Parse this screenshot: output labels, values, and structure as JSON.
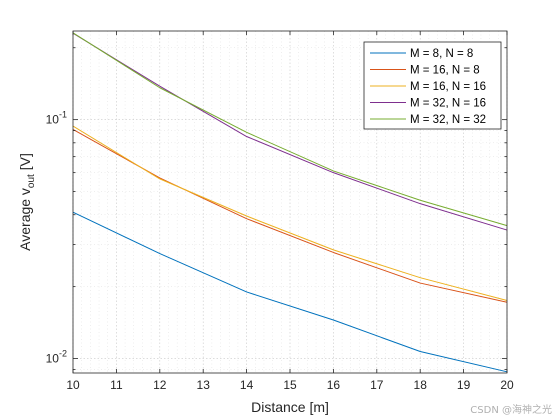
{
  "chart_data": {
    "type": "line",
    "xlabel": "Distance [m]",
    "ylabel_base": "Average v",
    "ylabel_sub": "out",
    "ylabel_unit": " [V]",
    "xlim": [
      10,
      20
    ],
    "ylim": [
      0.0087,
      0.235
    ],
    "yscale": "log",
    "grid": "major and minor",
    "legend_position": "top-right",
    "x": [
      10,
      12,
      14,
      16,
      18,
      20
    ],
    "x_ticks": [
      10,
      11,
      12,
      13,
      14,
      15,
      16,
      17,
      18,
      19,
      20
    ],
    "y_ticks": [
      {
        "value": 0.01,
        "label_base": "10",
        "label_exp": "-2"
      },
      {
        "value": 0.1,
        "label_base": "10",
        "label_exp": "-1"
      }
    ],
    "series": [
      {
        "name": "M = 8, N = 8",
        "color": "#0072BD",
        "values": [
          0.041,
          0.0275,
          0.019,
          0.0145,
          0.0107,
          0.0088
        ]
      },
      {
        "name": "M = 16, N = 8",
        "color": "#D95319",
        "values": [
          0.091,
          0.057,
          0.0385,
          0.0278,
          0.0207,
          0.0172
        ]
      },
      {
        "name": "M = 16, N = 16",
        "color": "#EDB120",
        "values": [
          0.094,
          0.0565,
          0.0395,
          0.0285,
          0.0218,
          0.0175
        ]
      },
      {
        "name": "M = 32, N = 16",
        "color": "#7E2F8E",
        "values": [
          0.23,
          0.138,
          0.085,
          0.06,
          0.0445,
          0.0345
        ]
      },
      {
        "name": "M = 32, N = 32",
        "color": "#77AC30",
        "values": [
          0.231,
          0.136,
          0.0885,
          0.061,
          0.046,
          0.036
        ]
      }
    ]
  },
  "watermark": "CSDN @海神之光"
}
